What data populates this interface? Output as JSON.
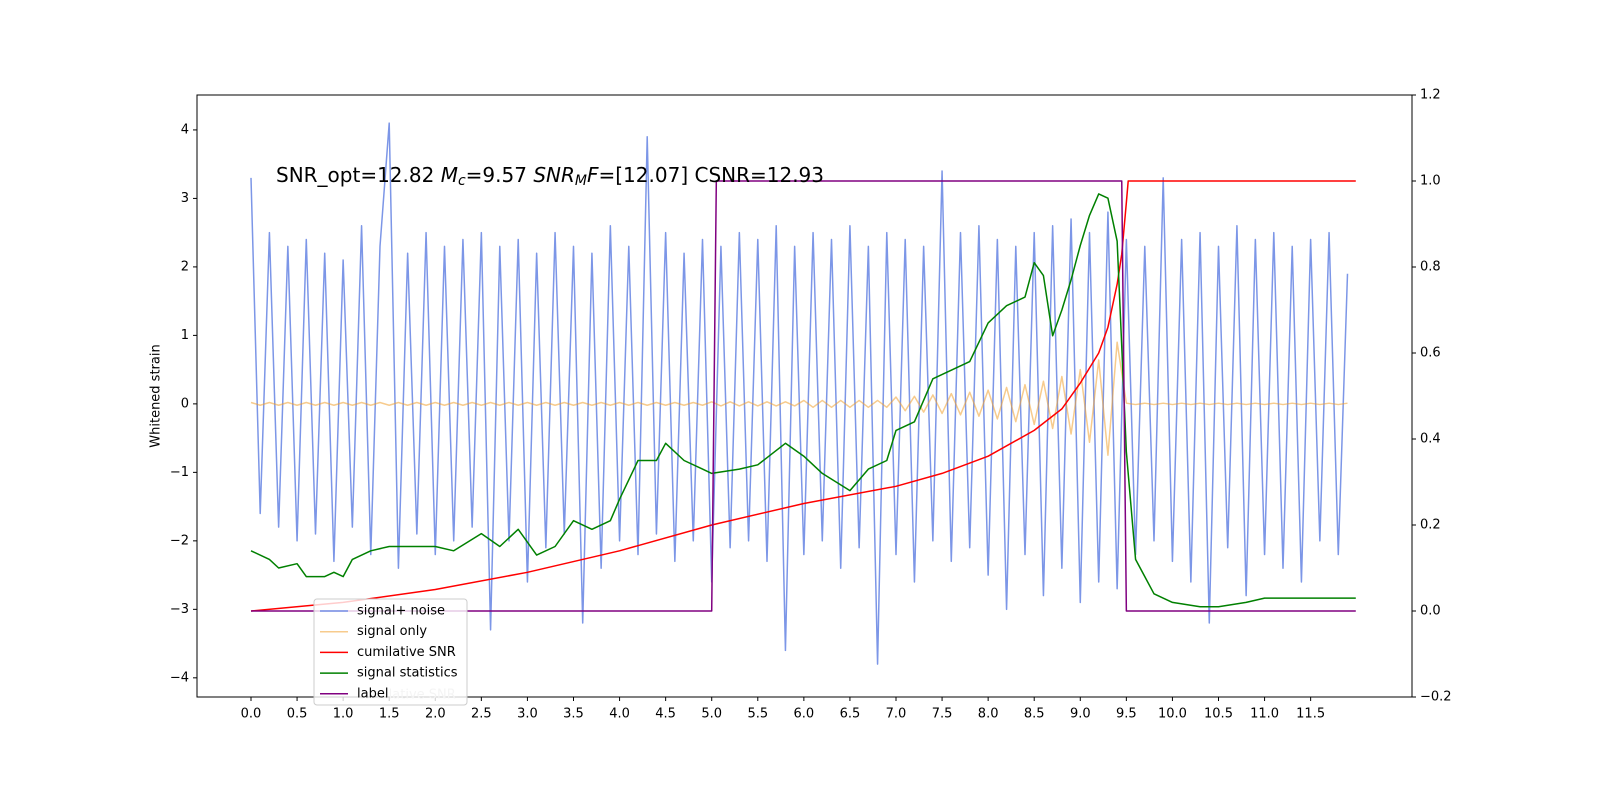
{
  "chart_data": {
    "type": "line",
    "annotation_parts": [
      "SNR_opt=12.82 ",
      "M",
      "c",
      "=9.57    ",
      "SNR",
      "M",
      "F",
      "=[12.07] CSNR=12.93"
    ],
    "ylabel": "Whitened strain",
    "xlim": [
      -0.586,
      12.6
    ],
    "ylim": [
      -4.28,
      4.51
    ],
    "y2lim": [
      -0.2,
      1.2
    ],
    "xticks": [
      {
        "value": 0,
        "label": "0.0"
      },
      0.5,
      {
        "value": 1,
        "label": "1.0"
      },
      1.5,
      {
        "value": 2,
        "label": "2.0"
      },
      2.5,
      {
        "value": 3,
        "label": "3.0"
      },
      3.5,
      {
        "value": 4,
        "label": "4.0"
      },
      4.5,
      {
        "value": 5,
        "label": "5.0"
      },
      5.5,
      {
        "value": 6,
        "label": "6.0"
      },
      6.5,
      {
        "value": 7,
        "label": "7.0"
      },
      7.5,
      {
        "value": 8,
        "label": "8.0"
      },
      8.5,
      {
        "value": 9,
        "label": "9.0"
      },
      9.5,
      {
        "value": 10,
        "label": "10.0"
      },
      10.5,
      {
        "value": 11,
        "label": "11.0"
      },
      11.5
    ],
    "yticks": [
      {
        "value": -4,
        "label": "−4"
      },
      {
        "value": -3,
        "label": "−3"
      },
      {
        "value": -2,
        "label": "−2"
      },
      {
        "value": -1,
        "label": "−1"
      },
      0,
      1,
      2,
      3,
      4
    ],
    "y2ticks": [
      {
        "value": -0.2,
        "label": "−0.2"
      },
      {
        "value": 0,
        "label": "0.0"
      },
      0.2,
      0.4,
      0.6,
      0.8,
      {
        "value": 1,
        "label": "1.0"
      },
      {
        "value": 1.2,
        "label": "1.2"
      }
    ],
    "legend": "lower left",
    "series": [
      {
        "name": "signal+ noise",
        "color": "#7590e6",
        "axis": "y",
        "x": [
          0,
          0.1,
          0.2,
          0.3,
          0.4,
          0.5,
          0.6,
          0.7,
          0.8,
          0.9,
          1,
          1.1,
          1.2,
          1.3,
          1.4,
          1.5,
          1.6,
          1.7,
          1.8,
          1.9,
          2,
          2.1,
          2.2,
          2.3,
          2.4,
          2.5,
          2.6,
          2.7,
          2.8,
          2.9,
          3,
          3.1,
          3.2,
          3.3,
          3.4,
          3.5,
          3.6,
          3.7,
          3.8,
          3.9,
          4,
          4.1,
          4.2,
          4.3,
          4.4,
          4.5,
          4.6,
          4.7,
          4.8,
          4.9,
          5,
          5.1,
          5.2,
          5.3,
          5.4,
          5.5,
          5.6,
          5.7,
          5.8,
          5.9,
          6,
          6.1,
          6.2,
          6.3,
          6.4,
          6.5,
          6.6,
          6.7,
          6.8,
          6.9,
          7,
          7.1,
          7.2,
          7.3,
          7.4,
          7.5,
          7.6,
          7.7,
          7.8,
          7.9,
          8,
          8.1,
          8.2,
          8.3,
          8.4,
          8.5,
          8.6,
          8.7,
          8.8,
          8.9,
          9,
          9.1,
          9.2,
          9.3,
          9.4,
          9.5,
          9.6,
          9.7,
          9.8,
          9.9,
          10,
          10.1,
          10.2,
          10.3,
          10.4,
          10.5,
          10.6,
          10.7,
          10.8,
          10.9,
          11,
          11.1,
          11.2,
          11.3,
          11.4,
          11.5,
          11.6,
          11.7,
          11.8,
          11.9
        ],
        "values": [
          3.3,
          -1.6,
          2.5,
          -1.8,
          2.3,
          -2.0,
          2.4,
          -1.9,
          2.2,
          -2.3,
          2.1,
          -1.8,
          2.6,
          -2.2,
          2.3,
          4.1,
          -2.4,
          2.2,
          -1.9,
          2.5,
          -2.2,
          2.3,
          -2.0,
          2.4,
          -1.8,
          2.5,
          -3.3,
          2.3,
          -2.0,
          2.4,
          -2.6,
          2.2,
          -2.1,
          2.5,
          -1.9,
          2.3,
          -3.2,
          2.2,
          -2.4,
          2.6,
          -2.0,
          2.3,
          -2.2,
          3.9,
          -1.9,
          2.5,
          -2.3,
          2.2,
          -2.0,
          2.4,
          -2.6,
          2.3,
          -2.1,
          2.5,
          -2.0,
          2.4,
          -2.3,
          2.6,
          -3.6,
          2.3,
          -2.2,
          2.5,
          -2.0,
          2.4,
          -2.4,
          2.6,
          -2.1,
          2.3,
          -3.8,
          2.5,
          -2.2,
          2.4,
          -2.6,
          2.3,
          -2.0,
          3.4,
          -2.3,
          2.5,
          -2.1,
          2.6,
          -2.5,
          2.4,
          -3.0,
          2.3,
          -2.2,
          2.5,
          -2.8,
          2.6,
          -2.4,
          2.7,
          -2.9,
          2.5,
          -2.6,
          2.8,
          -2.7,
          2.4,
          -2.2,
          2.3,
          -2.0,
          3.3,
          -2.3,
          2.4,
          -2.6,
          2.5,
          -3.2,
          2.3,
          -2.1,
          2.6,
          -2.8,
          2.4,
          -2.2,
          2.5,
          -2.4,
          2.3,
          -2.6,
          2.4,
          -2.0,
          2.5,
          -2.2,
          1.9
        ]
      },
      {
        "name": "signal only",
        "color": "#f0a030",
        "axis": "y",
        "x": [
          0,
          0.1,
          0.2,
          0.3,
          0.4,
          0.5,
          0.6,
          0.7,
          0.8,
          0.9,
          1,
          1.1,
          1.2,
          1.3,
          1.4,
          1.5,
          1.6,
          1.7,
          1.8,
          1.9,
          2,
          2.1,
          2.2,
          2.3,
          2.4,
          2.5,
          2.6,
          2.7,
          2.8,
          2.9,
          3,
          3.1,
          3.2,
          3.3,
          3.4,
          3.5,
          3.6,
          3.7,
          3.8,
          3.9,
          4,
          4.1,
          4.2,
          4.3,
          4.4,
          4.5,
          4.6,
          4.7,
          4.8,
          4.9,
          5,
          5.1,
          5.2,
          5.3,
          5.4,
          5.5,
          5.6,
          5.7,
          5.8,
          5.9,
          6,
          6.1,
          6.2,
          6.3,
          6.4,
          6.5,
          6.6,
          6.7,
          6.8,
          6.9,
          7,
          7.1,
          7.2,
          7.3,
          7.4,
          7.5,
          7.6,
          7.7,
          7.8,
          7.9,
          8,
          8.1,
          8.2,
          8.3,
          8.4,
          8.5,
          8.6,
          8.7,
          8.8,
          8.9,
          9,
          9.1,
          9.2,
          9.3,
          9.4,
          9.5,
          9.6,
          9.7,
          9.8,
          9.9,
          10,
          10.1,
          10.2,
          10.3,
          10.4,
          10.5,
          10.6,
          10.7,
          10.8,
          10.9,
          11,
          11.1,
          11.2,
          11.3,
          11.4,
          11.5,
          11.6,
          11.7,
          11.8,
          11.9
        ],
        "values": [
          0.02,
          -0.02,
          0.02,
          -0.02,
          0.02,
          -0.02,
          0.02,
          -0.02,
          0.02,
          -0.02,
          0.02,
          -0.02,
          0.02,
          -0.02,
          0.02,
          -0.02,
          0.02,
          -0.02,
          0.02,
          -0.02,
          0.02,
          -0.02,
          0.02,
          -0.02,
          0.02,
          -0.02,
          0.02,
          -0.02,
          0.02,
          -0.02,
          0.02,
          -0.02,
          0.02,
          -0.02,
          0.02,
          -0.02,
          0.02,
          -0.02,
          0.02,
          -0.02,
          0.02,
          -0.02,
          0.02,
          -0.02,
          0.02,
          -0.02,
          0.02,
          -0.02,
          0.02,
          -0.02,
          0.03,
          -0.03,
          0.03,
          -0.03,
          0.03,
          -0.03,
          0.03,
          -0.03,
          0.03,
          -0.03,
          0.05,
          -0.05,
          0.05,
          -0.05,
          0.05,
          -0.05,
          0.05,
          -0.05,
          0.05,
          -0.05,
          0.1,
          -0.1,
          0.11,
          -0.12,
          0.13,
          -0.14,
          0.15,
          -0.16,
          0.17,
          -0.18,
          0.2,
          -0.22,
          0.24,
          -0.26,
          0.28,
          -0.3,
          0.33,
          -0.36,
          0.4,
          -0.44,
          0.5,
          -0.56,
          0.64,
          -0.75,
          0.9,
          0.01,
          -0.01,
          0.01,
          -0.01,
          0.01,
          -0.01,
          0.01,
          -0.01,
          0.01,
          -0.01,
          0.01,
          -0.01,
          0.01,
          -0.01,
          0.01,
          -0.01,
          0.01,
          -0.01,
          0.01,
          -0.01,
          0.01,
          -0.01,
          0.01,
          -0.01,
          0.01
        ]
      },
      {
        "name": "cumilative SNR",
        "color": "#ff0000",
        "axis": "y2",
        "x": [
          0,
          1,
          2,
          3,
          4,
          5,
          6,
          7,
          7.5,
          8,
          8.5,
          8.8,
          9,
          9.2,
          9.3,
          9.4,
          9.45,
          9.5,
          9.52,
          11.99
        ],
        "values": [
          0,
          0.02,
          0.05,
          0.09,
          0.14,
          0.2,
          0.25,
          0.29,
          0.32,
          0.36,
          0.42,
          0.47,
          0.53,
          0.6,
          0.66,
          0.76,
          0.83,
          0.95,
          1.0,
          1.0
        ]
      },
      {
        "name": "signal statistics",
        "color": "#008000",
        "axis": "y2",
        "x": [
          0,
          0.2,
          0.3,
          0.5,
          0.6,
          0.8,
          0.9,
          1.0,
          1.1,
          1.3,
          1.5,
          1.7,
          2.0,
          2.2,
          2.5,
          2.7,
          2.9,
          3.1,
          3.3,
          3.5,
          3.7,
          3.9,
          4.0,
          4.2,
          4.4,
          4.5,
          4.7,
          4.9,
          5.0,
          5.3,
          5.5,
          5.8,
          6.0,
          6.2,
          6.5,
          6.7,
          6.9,
          7.0,
          7.2,
          7.4,
          7.6,
          7.8,
          8.0,
          8.2,
          8.4,
          8.5,
          8.6,
          8.7,
          8.8,
          8.9,
          9.0,
          9.1,
          9.2,
          9.3,
          9.4,
          9.5,
          9.6,
          9.8,
          10.0,
          10.3,
          10.5,
          10.8,
          11.0,
          11.3,
          11.6,
          11.99
        ],
        "values": [
          0.14,
          0.12,
          0.1,
          0.11,
          0.08,
          0.08,
          0.09,
          0.08,
          0.12,
          0.14,
          0.15,
          0.15,
          0.15,
          0.14,
          0.18,
          0.15,
          0.19,
          0.13,
          0.15,
          0.21,
          0.19,
          0.21,
          0.26,
          0.35,
          0.35,
          0.39,
          0.35,
          0.33,
          0.32,
          0.33,
          0.34,
          0.39,
          0.36,
          0.32,
          0.28,
          0.33,
          0.35,
          0.42,
          0.44,
          0.54,
          0.56,
          0.58,
          0.67,
          0.71,
          0.73,
          0.81,
          0.78,
          0.64,
          0.7,
          0.77,
          0.85,
          0.92,
          0.97,
          0.96,
          0.86,
          0.37,
          0.12,
          0.04,
          0.02,
          0.01,
          0.01,
          0.02,
          0.03,
          0.03,
          0.03,
          0.03
        ]
      },
      {
        "name": "label",
        "color": "#800080",
        "axis": "y2",
        "x": [
          0,
          5.0,
          5.05,
          9.45,
          9.5,
          11.99
        ],
        "values": [
          0,
          0,
          1,
          1,
          0,
          0
        ]
      }
    ]
  }
}
